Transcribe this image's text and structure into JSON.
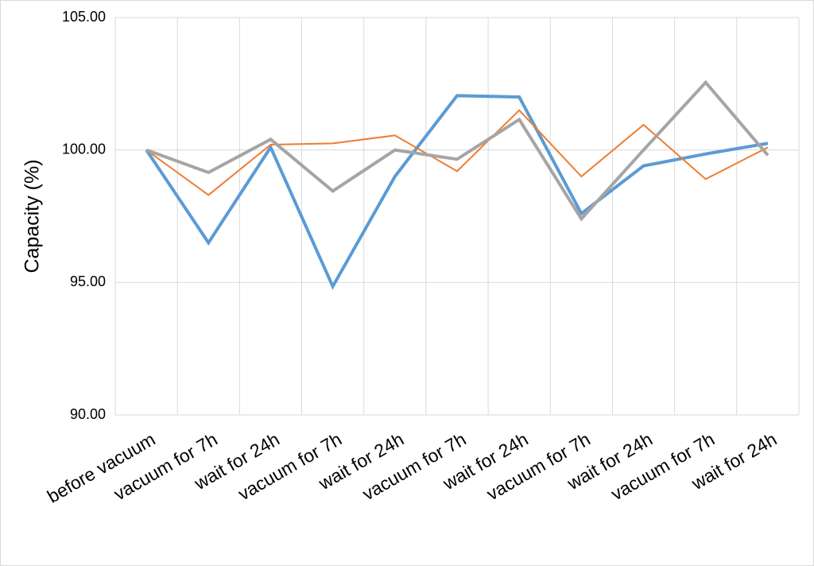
{
  "chart_data": {
    "type": "line",
    "y_label": "Capacity (%)",
    "categories": [
      "before vacuum",
      "vacuum for 7h",
      "wait for 24h",
      "vacuum for 7h",
      "wait for 24h",
      "vacuum for 7h",
      "wait for 24h",
      "vacuum for 7h",
      "wait for 24h",
      "vacuum for 7h",
      "wait for 24h"
    ],
    "series": [
      {
        "color": "#5b9bd5",
        "values": [
          100,
          96.5,
          100.1,
          94.85,
          99.0,
          102.05,
          102.0,
          97.6,
          99.4,
          99.85,
          100.25
        ]
      },
      {
        "color": "#ed7d31",
        "values": [
          100,
          98.3,
          100.2,
          100.25,
          100.55,
          99.2,
          101.5,
          99.0,
          100.95,
          98.9,
          100.1
        ]
      },
      {
        "color": "#a5a5a5",
        "values": [
          100,
          99.15,
          100.4,
          98.45,
          100.0,
          99.65,
          101.15,
          97.4,
          100.0,
          102.55,
          99.8
        ]
      }
    ],
    "ylim": [
      90,
      105
    ],
    "yticks": [
      {
        "value": 90,
        "label": "90.00"
      },
      {
        "value": 95,
        "label": "95.00"
      },
      {
        "value": 100,
        "label": "100.00"
      },
      {
        "value": 105,
        "label": "105.00"
      }
    ],
    "grid": true
  }
}
